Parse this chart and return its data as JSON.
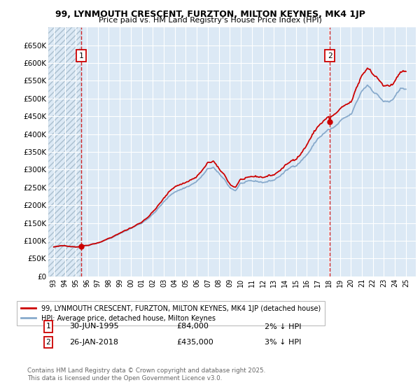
{
  "title": "99, LYNMOUTH CRESCENT, FURZTON, MILTON KEYNES, MK4 1JP",
  "subtitle": "Price paid vs. HM Land Registry's House Price Index (HPI)",
  "ylim": [
    0,
    700000
  ],
  "yticks": [
    0,
    50000,
    100000,
    150000,
    200000,
    250000,
    300000,
    350000,
    400000,
    450000,
    500000,
    550000,
    600000,
    650000
  ],
  "ylabel_vals": [
    "£0",
    "£50K",
    "£100K",
    "£150K",
    "£200K",
    "£250K",
    "£300K",
    "£350K",
    "£400K",
    "£450K",
    "£500K",
    "£550K",
    "£600K",
    "£650K"
  ],
  "xlim_start": 1992.5,
  "xlim_end": 2025.9,
  "bg_color": "#dce9f5",
  "grid_color": "#ffffff",
  "line1_color": "#cc0000",
  "line2_color": "#88aacc",
  "hatch_x_end": 1995.45,
  "vline1_x": 1995.5,
  "vline2_x": 2018.08,
  "marker1_x": 1995.5,
  "marker1_y": 84000,
  "marker2_x": 2018.08,
  "marker2_y": 435000,
  "legend_line1": "99, LYNMOUTH CRESCENT, FURZTON, MILTON KEYNES, MK4 1JP (detached house)",
  "legend_line2": "HPI: Average price, detached house, Milton Keynes",
  "footnote": "Contains HM Land Registry data © Crown copyright and database right 2025.\nThis data is licensed under the Open Government Licence v3.0.",
  "label1_date": "30-JUN-1995",
  "label1_price": "£84,000",
  "label1_hpi": "2% ↓ HPI",
  "label2_date": "26-JAN-2018",
  "label2_price": "£435,000",
  "label2_hpi": "3% ↓ HPI"
}
